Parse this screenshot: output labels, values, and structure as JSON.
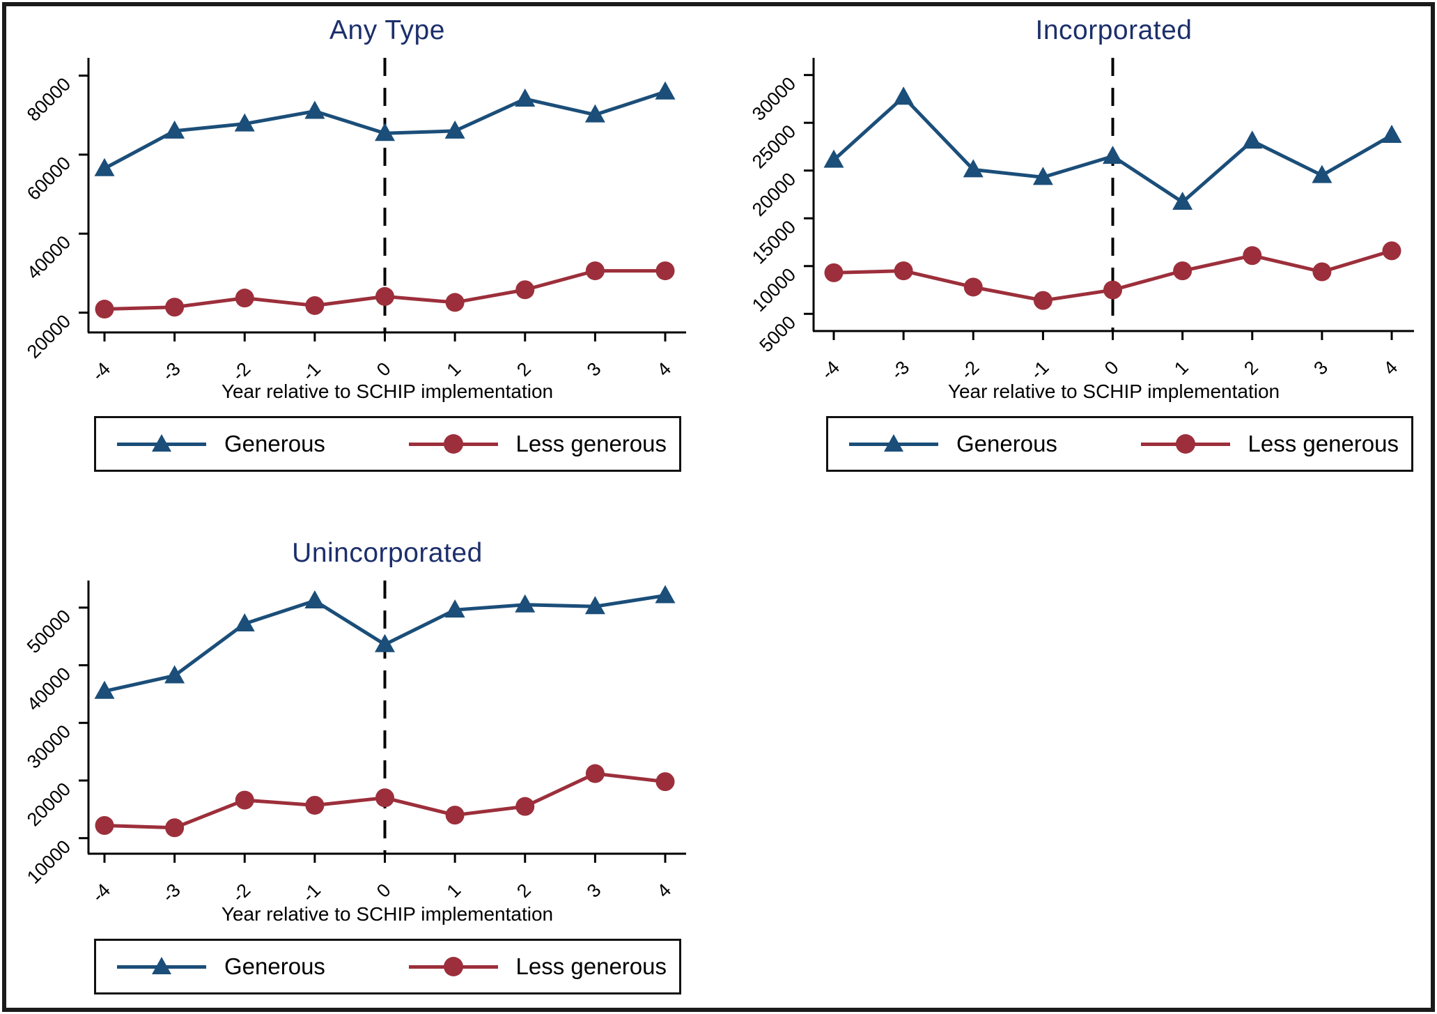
{
  "figure": {
    "background": "#ffffff",
    "border_color": "#1b1b1b",
    "title_color": "#1c2f6b",
    "axis_color": "#000000"
  },
  "series_colors": {
    "generous": "#1b4e79",
    "less_generous": "#9c2f3b"
  },
  "chart_data": [
    {
      "type": "line",
      "title": "Any Type",
      "xlabel": "Year relative to SCHIP implementation",
      "x": [
        -4,
        -3,
        -2,
        -1,
        0,
        1,
        2,
        3,
        4
      ],
      "xticklabels": [
        "-4",
        "-3",
        "-2",
        "-1",
        "0",
        "1",
        "2",
        "3",
        "4"
      ],
      "yticks": [
        20000,
        40000,
        60000,
        80000
      ],
      "ylim": [
        15000,
        84500
      ],
      "vline_x": 0,
      "grid": false,
      "legend_position": "below",
      "series": [
        {
          "name": "Generous",
          "marker": "triangle",
          "color": "#1b4e79",
          "values": [
            56500,
            66000,
            67800,
            71000,
            65400,
            66000,
            74100,
            70100,
            75900
          ]
        },
        {
          "name": "Less generous",
          "marker": "circle",
          "color": "#9c2f3b",
          "values": [
            20900,
            21400,
            23700,
            21800,
            24100,
            22600,
            25800,
            30600,
            30600
          ]
        }
      ]
    },
    {
      "type": "line",
      "title": "Incorporated",
      "xlabel": "Year relative to SCHIP implementation",
      "x": [
        -4,
        -3,
        -2,
        -1,
        0,
        1,
        2,
        3,
        4
      ],
      "xticklabels": [
        "-4",
        "-3",
        "-2",
        "-1",
        "0",
        "1",
        "2",
        "3",
        "4"
      ],
      "yticks": [
        5000,
        10000,
        15000,
        20000,
        25000,
        30000
      ],
      "ylim": [
        3200,
        31800
      ],
      "vline_x": 0,
      "grid": false,
      "legend_position": "below",
      "series": [
        {
          "name": "Generous",
          "marker": "triangle",
          "color": "#1b4e79",
          "values": [
            21100,
            27700,
            20100,
            19300,
            21500,
            16700,
            23100,
            19500,
            23700
          ]
        },
        {
          "name": "Less generous",
          "marker": "circle",
          "color": "#9c2f3b",
          "values": [
            9300,
            9500,
            7800,
            6400,
            7500,
            9500,
            11100,
            9400,
            11600
          ]
        }
      ]
    },
    {
      "type": "line",
      "title": "Unincorporated",
      "xlabel": "Year relative to SCHIP implementation",
      "x": [
        -4,
        -3,
        -2,
        -1,
        0,
        1,
        2,
        3,
        4
      ],
      "xticklabels": [
        "-4",
        "-3",
        "-2",
        "-1",
        "0",
        "1",
        "2",
        "3",
        "4"
      ],
      "yticks": [
        10000,
        20000,
        30000,
        40000,
        50000
      ],
      "ylim": [
        7300,
        54700
      ],
      "vline_x": 0,
      "grid": false,
      "legend_position": "below",
      "series": [
        {
          "name": "Generous",
          "marker": "triangle",
          "color": "#1b4e79",
          "values": [
            35500,
            38200,
            47200,
            51200,
            43600,
            49600,
            50500,
            50200,
            52100
          ]
        },
        {
          "name": "Less generous",
          "marker": "circle",
          "color": "#9c2f3b",
          "values": [
            12200,
            11800,
            16600,
            15700,
            17000,
            14000,
            15500,
            21200,
            19800
          ]
        }
      ]
    }
  ]
}
